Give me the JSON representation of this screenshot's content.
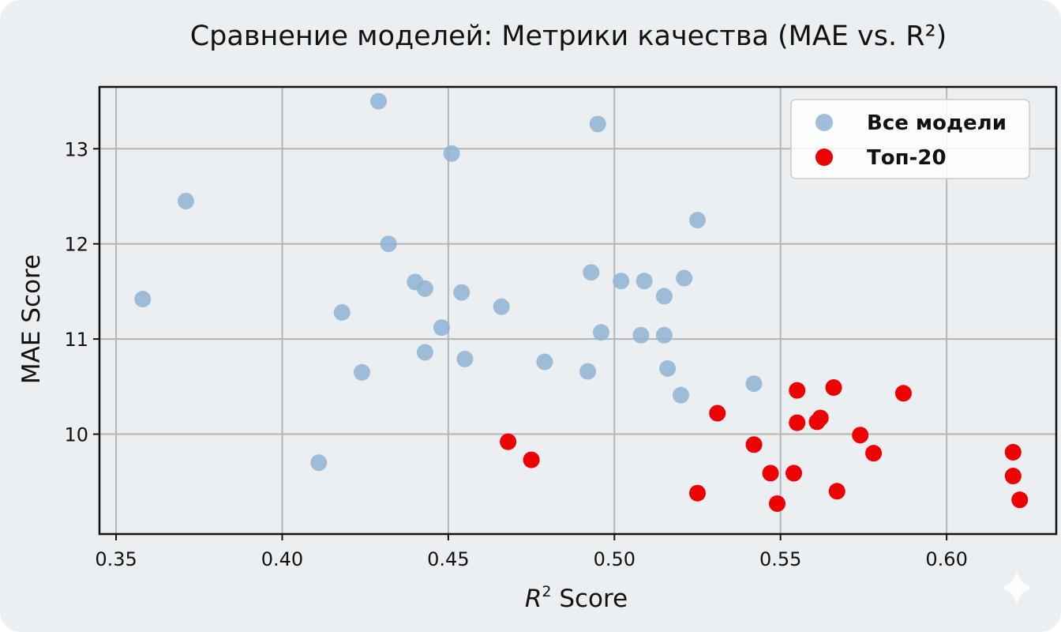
{
  "chart_data": {
    "type": "scatter",
    "title": "Сравнение моделей: Метрики качества (MAE vs. R²)",
    "xlabel_main": "R",
    "xlabel_sup": "2",
    "xlabel_rest": " Score",
    "ylabel": "MAE Score",
    "xlim": [
      0.345,
      0.633
    ],
    "ylim": [
      8.95,
      13.65
    ],
    "x_ticks": [
      {
        "value": 0.35,
        "label": "0.35"
      },
      {
        "value": 0.4,
        "label": "0.40"
      },
      {
        "value": 0.45,
        "label": "0.45"
      },
      {
        "value": 0.5,
        "label": "0.50"
      },
      {
        "value": 0.55,
        "label": "0.55"
      },
      {
        "value": 0.6,
        "label": "0.60"
      }
    ],
    "y_ticks": [
      {
        "value": 10,
        "label": "10"
      },
      {
        "value": 11,
        "label": "11"
      },
      {
        "value": 12,
        "label": "12"
      },
      {
        "value": 13,
        "label": "13"
      }
    ],
    "grid": true,
    "legend_position": "top-right",
    "series": [
      {
        "name": "Все модели",
        "color": "#8fb3d2",
        "opacity": 0.85,
        "points": [
          [
            0.358,
            11.42
          ],
          [
            0.371,
            12.45
          ],
          [
            0.411,
            9.7
          ],
          [
            0.418,
            11.28
          ],
          [
            0.424,
            10.65
          ],
          [
            0.429,
            13.5
          ],
          [
            0.432,
            12.0
          ],
          [
            0.44,
            11.6
          ],
          [
            0.443,
            11.53
          ],
          [
            0.443,
            10.86
          ],
          [
            0.448,
            11.12
          ],
          [
            0.451,
            12.95
          ],
          [
            0.454,
            11.49
          ],
          [
            0.455,
            10.79
          ],
          [
            0.466,
            11.34
          ],
          [
            0.479,
            10.76
          ],
          [
            0.492,
            10.66
          ],
          [
            0.493,
            11.7
          ],
          [
            0.495,
            13.26
          ],
          [
            0.496,
            11.07
          ],
          [
            0.502,
            11.61
          ],
          [
            0.508,
            11.04
          ],
          [
            0.509,
            11.61
          ],
          [
            0.515,
            11.45
          ],
          [
            0.515,
            11.04
          ],
          [
            0.516,
            10.69
          ],
          [
            0.52,
            10.41
          ],
          [
            0.521,
            11.64
          ],
          [
            0.525,
            12.25
          ],
          [
            0.542,
            10.53
          ]
        ]
      },
      {
        "name": "Топ-20",
        "color": "#ee0000",
        "opacity": 1,
        "points": [
          [
            0.468,
            9.92
          ],
          [
            0.475,
            9.73
          ],
          [
            0.525,
            9.38
          ],
          [
            0.531,
            10.22
          ],
          [
            0.542,
            9.89
          ],
          [
            0.547,
            9.59
          ],
          [
            0.549,
            9.27
          ],
          [
            0.554,
            9.59
          ],
          [
            0.555,
            10.12
          ],
          [
            0.555,
            10.46
          ],
          [
            0.561,
            10.13
          ],
          [
            0.562,
            10.17
          ],
          [
            0.566,
            10.49
          ],
          [
            0.567,
            9.4
          ],
          [
            0.574,
            9.99
          ],
          [
            0.578,
            9.8
          ],
          [
            0.587,
            10.43
          ],
          [
            0.62,
            9.81
          ],
          [
            0.62,
            9.56
          ],
          [
            0.622,
            9.31
          ]
        ]
      }
    ]
  }
}
